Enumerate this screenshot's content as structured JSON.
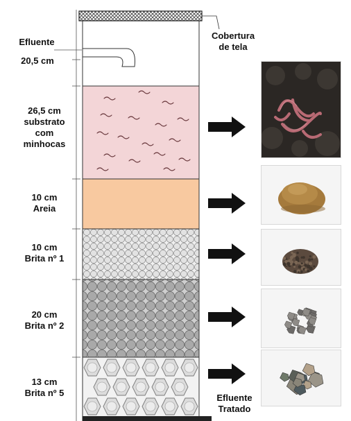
{
  "labels": {
    "effluent_in": "Efluente",
    "cover": "Cobertura\nde tela",
    "effluent_out": "Efluente\nTratado"
  },
  "layers": [
    {
      "id": "headspace",
      "thickness": "20,5 cm",
      "material": ""
    },
    {
      "id": "substrate",
      "thickness": "26,5 cm",
      "material": "substrato\ncom\nminhocas",
      "fill": "#f3d5d7"
    },
    {
      "id": "sand",
      "thickness": "10 cm",
      "material": "Areia",
      "fill": "#f8c9a0"
    },
    {
      "id": "gravel-1",
      "thickness": "10 cm",
      "material": "Brita nº 1"
    },
    {
      "id": "gravel-2",
      "thickness": "20 cm",
      "material": "Brita nº 2"
    },
    {
      "id": "gravel-5",
      "thickness": "13 cm",
      "material": "Brita nº 5"
    }
  ],
  "photos": [
    {
      "id": "worms-photo",
      "icon": "earthworm-substrate-photo"
    },
    {
      "id": "sand-photo",
      "icon": "sand-pile-photo"
    },
    {
      "id": "gravel-1-photo",
      "icon": "fine-gravel-photo"
    },
    {
      "id": "gravel-2-photo",
      "icon": "medium-gravel-photo"
    },
    {
      "id": "gravel-5-photo",
      "icon": "coarse-gravel-photo"
    }
  ],
  "colors": {
    "substrate": "#f3d5d7",
    "sand": "#f8c9a0",
    "gravel_light": "#e6e6e6",
    "gravel_dark": "#a8a8a8",
    "arrow": "#111111"
  }
}
